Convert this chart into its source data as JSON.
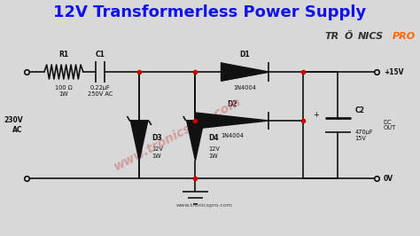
{
  "title": "12V Transformerless Power Supply",
  "title_color": "#1111EE",
  "title_fontsize": 13,
  "bg_color": "#D8D8D8",
  "circuit_color": "#111111",
  "watermark_text": "www.tronicspro.com",
  "watermark_color": "#CC7777",
  "bottom_text": "www.tronicspro.com",
  "R1_label": "R1",
  "R1_value": "100 Ω\n1W",
  "C1_label": "C1",
  "C1_value": "0.22μF\n250V AC",
  "D1_label": "D1",
  "D1_value": "1N4004",
  "D2_label": "D2",
  "D2_value": "1N4004",
  "D3_label": "D3",
  "D3_value": "12V\n1W",
  "D4_label": "D4",
  "D4_value": "12V\n1W",
  "C2_label": "C2",
  "C2_value": "470μF\n15V",
  "input_label": "230V\nAC",
  "out_top_label": "+15V",
  "out_bot_label": "0V",
  "dc_out_label": "DC\nOUT"
}
